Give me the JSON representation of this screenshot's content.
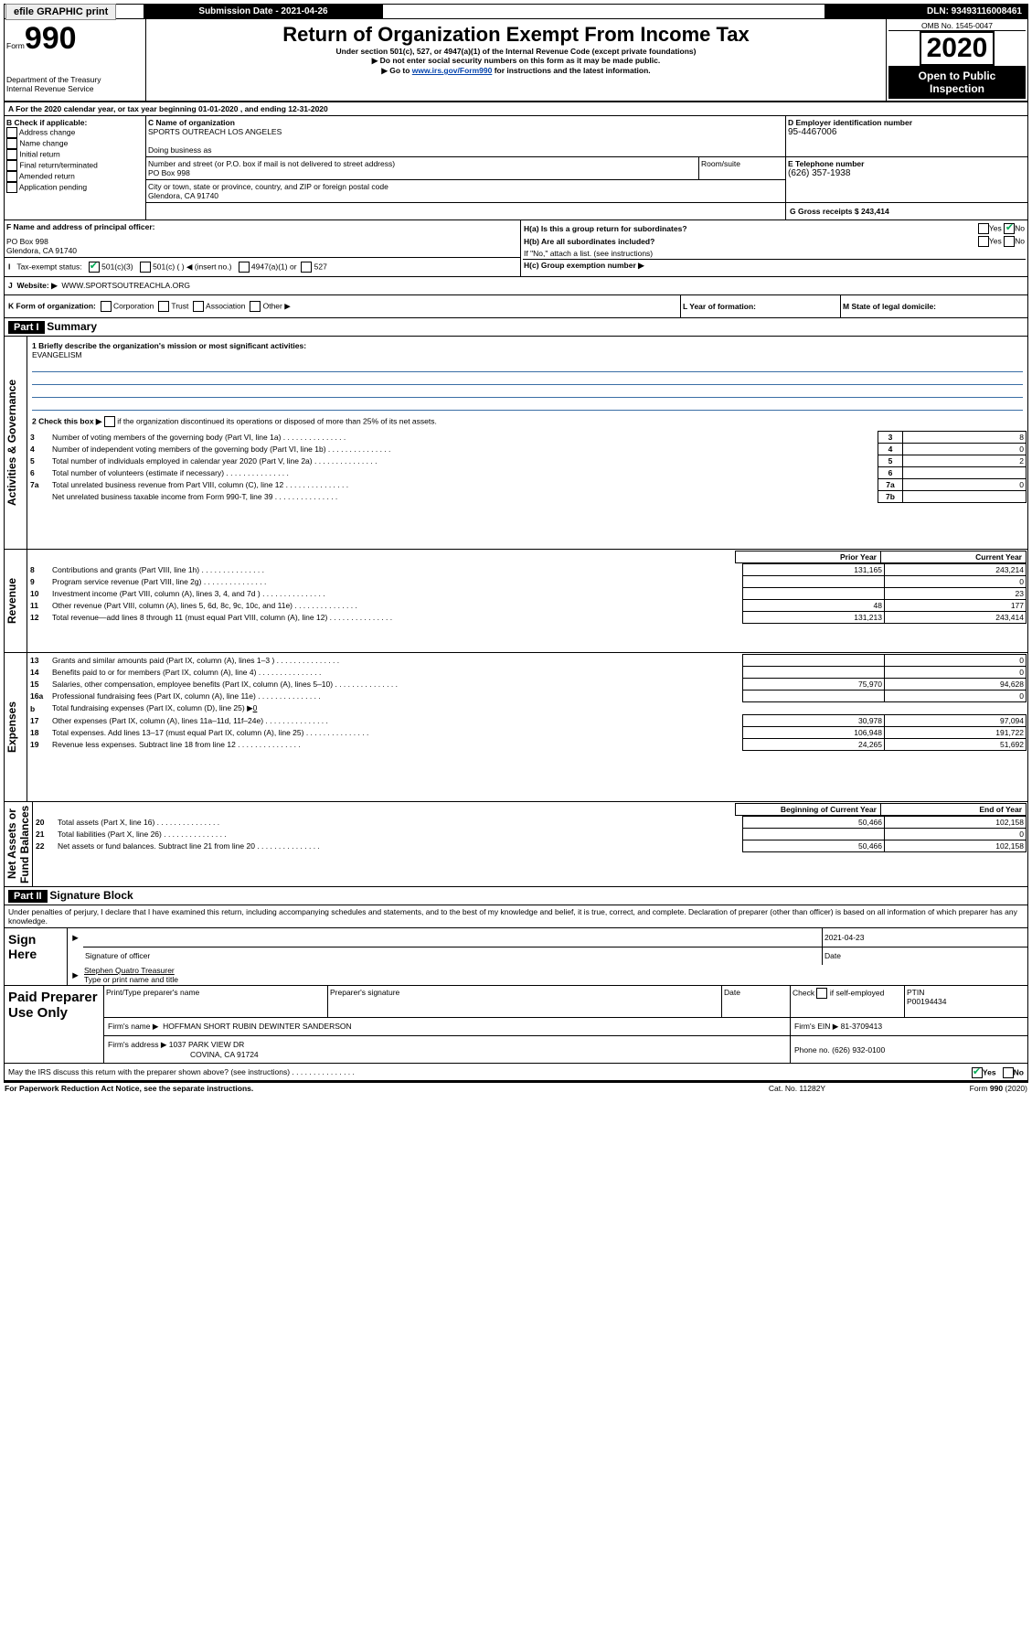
{
  "topbar": {
    "efile": "efile GRAPHIC print",
    "subdate_label": "Submission Date - 2021-04-26",
    "dln_label": "DLN: 93493116008461"
  },
  "header": {
    "form": "Form",
    "num": "990",
    "dept1": "Department of the Treasury",
    "dept2": "Internal Revenue Service",
    "title": "Return of Organization Exempt From Income Tax",
    "sub1": "Under section 501(c), 527, or 4947(a)(1) of the Internal Revenue Code (except private foundations)",
    "sub2": "▶ Do not enter social security numbers on this form as it may be made public.",
    "sub3_prefix": "▶ Go to ",
    "sub3_link": "www.irs.gov/Form990",
    "sub3_suffix": " for instructions and the latest information.",
    "omb": "OMB No. 1545-0047",
    "year": "2020",
    "open": "Open to Public Inspection"
  },
  "A": {
    "text_prefix": "A For the 2020 calendar year, or tax year beginning ",
    "begin": "01-01-2020",
    "mid": " , and ending ",
    "end": "12-31-2020"
  },
  "B": {
    "label": "B Check if applicable:",
    "items": [
      "Address change",
      "Name change",
      "Initial return",
      "Final return/terminated",
      "Amended return",
      "Application pending"
    ]
  },
  "C": {
    "name_label": "C Name of organization",
    "name": "SPORTS OUTREACH LOS ANGELES",
    "dba_label": "Doing business as",
    "addr_label": "Number and street (or P.O. box if mail is not delivered to street address)",
    "room_label": "Room/suite",
    "addr": "PO Box 998",
    "city_label": "City or town, state or province, country, and ZIP or foreign postal code",
    "city": "Glendora, CA  91740"
  },
  "D": {
    "label": "D Employer identification number",
    "val": "95-4467006"
  },
  "E": {
    "label": "E Telephone number",
    "val": "(626) 357-1938"
  },
  "G": {
    "label": "G Gross receipts $ 243,414"
  },
  "F": {
    "label": "F  Name and address of principal officer:",
    "line1": "PO Box 998",
    "line2": "Glendora, CA  91740"
  },
  "H": {
    "a": "H(a)  Is this a group return for subordinates?",
    "b": "H(b)  Are all subordinates included?",
    "b_note": "If \"No,\" attach a list. (see instructions)",
    "c": "H(c)  Group exemption number ▶",
    "yes": "Yes",
    "no": "No"
  },
  "I": {
    "label": "I",
    "text": "Tax-exempt status:",
    "o1": "501(c)(3)",
    "o2": "501(c) (  ) ◀ (insert no.)",
    "o3": "4947(a)(1) or",
    "o4": "527"
  },
  "J": {
    "label": "J",
    "text": "Website: ▶",
    "val": "WWW.SPORTSOUTREACHLA.ORG"
  },
  "K": {
    "label": "K Form of organization:",
    "opts": [
      "Corporation",
      "Trust",
      "Association",
      "Other ▶"
    ],
    "L": "L Year of formation:",
    "M": "M State of legal domicile:"
  },
  "partI": {
    "hdr": "Part I",
    "title": "Summary",
    "q1": "1  Briefly describe the organization's mission or most significant activities:",
    "q1val": "EVANGELISM",
    "q2": "2   Check this box ▶",
    "q2b": " if the organization discontinued its operations or disposed of more than 25% of its net assets.",
    "rows_gov": [
      {
        "n": "3",
        "d": "Number of voting members of the governing body (Part VI, line 1a)",
        "i": "3",
        "v": "8"
      },
      {
        "n": "4",
        "d": "Number of independent voting members of the governing body (Part VI, line 1b)",
        "i": "4",
        "v": "0"
      },
      {
        "n": "5",
        "d": "Total number of individuals employed in calendar year 2020 (Part V, line 2a)",
        "i": "5",
        "v": "2"
      },
      {
        "n": "6",
        "d": "Total number of volunteers (estimate if necessary)",
        "i": "6",
        "v": ""
      },
      {
        "n": "7a",
        "d": "Total unrelated business revenue from Part VIII, column (C), line 12",
        "i": "7a",
        "v": "0"
      },
      {
        "n": "",
        "d": "Net unrelated business taxable income from Form 990-T, line 39",
        "i": "7b",
        "v": ""
      }
    ],
    "col_prior": "Prior Year",
    "col_curr": "Current Year",
    "rev": [
      {
        "n": "8",
        "d": "Contributions and grants (Part VIII, line 1h)",
        "p": "131,165",
        "c": "243,214"
      },
      {
        "n": "9",
        "d": "Program service revenue (Part VIII, line 2g)",
        "p": "",
        "c": "0"
      },
      {
        "n": "10",
        "d": "Investment income (Part VIII, column (A), lines 3, 4, and 7d )",
        "p": "",
        "c": "23"
      },
      {
        "n": "11",
        "d": "Other revenue (Part VIII, column (A), lines 5, 6d, 8c, 9c, 10c, and 11e)",
        "p": "48",
        "c": "177"
      },
      {
        "n": "12",
        "d": "Total revenue—add lines 8 through 11 (must equal Part VIII, column (A), line 12)",
        "p": "131,213",
        "c": "243,414"
      }
    ],
    "exp": [
      {
        "n": "13",
        "d": "Grants and similar amounts paid (Part IX, column (A), lines 1–3 )",
        "p": "",
        "c": "0"
      },
      {
        "n": "14",
        "d": "Benefits paid to or for members (Part IX, column (A), line 4)",
        "p": "",
        "c": "0"
      },
      {
        "n": "15",
        "d": "Salaries, other compensation, employee benefits (Part IX, column (A), lines 5–10)",
        "p": "75,970",
        "c": "94,628"
      },
      {
        "n": "16a",
        "d": "Professional fundraising fees (Part IX, column (A), line 11e)",
        "p": "",
        "c": "0"
      },
      {
        "n": "b",
        "d": "Total fundraising expenses (Part IX, column (D), line 25) ▶",
        "p": null,
        "c": null,
        "inline": "0"
      },
      {
        "n": "17",
        "d": "Other expenses (Part IX, column (A), lines 11a–11d, 11f–24e)",
        "p": "30,978",
        "c": "97,094"
      },
      {
        "n": "18",
        "d": "Total expenses. Add lines 13–17 (must equal Part IX, column (A), line 25)",
        "p": "106,948",
        "c": "191,722"
      },
      {
        "n": "19",
        "d": "Revenue less expenses. Subtract line 18 from line 12",
        "p": "24,265",
        "c": "51,692"
      }
    ],
    "col_begin": "Beginning of Current Year",
    "col_end": "End of Year",
    "net": [
      {
        "n": "20",
        "d": "Total assets (Part X, line 16)",
        "p": "50,466",
        "c": "102,158"
      },
      {
        "n": "21",
        "d": "Total liabilities (Part X, line 26)",
        "p": "",
        "c": "0"
      },
      {
        "n": "22",
        "d": "Net assets or fund balances. Subtract line 21 from line 20",
        "p": "50,466",
        "c": "102,158"
      }
    ],
    "side_gov": "Activities & Governance",
    "side_rev": "Revenue",
    "side_exp": "Expenses",
    "side_net": "Net Assets or Fund Balances"
  },
  "partII": {
    "hdr": "Part II",
    "title": "Signature Block",
    "decl": "Under penalties of perjury, I declare that I have examined this return, including accompanying schedules and statements, and to the best of my knowledge and belief, it is true, correct, and complete. Declaration of preparer (other than officer) is based on all information of which preparer has any knowledge.",
    "sign_here": "Sign Here",
    "sig_officer": "Signature of officer",
    "sig_date": "2021-04-23",
    "date_label": "Date",
    "officer_name": "Stephen Quatro Treasurer",
    "type_name": "Type or print name and title",
    "paid": "Paid Preparer Use Only",
    "prep_name_label": "Print/Type preparer's name",
    "prep_sig_label": "Preparer's signature",
    "check_self": "Check",
    "self_emp": "if self-employed",
    "ptin_label": "PTIN",
    "ptin": "P00194434",
    "firm_name_label": "Firm's name   ▶",
    "firm_name": "HOFFMAN SHORT RUBIN DEWINTER SANDERSON",
    "firm_ein_label": "Firm's EIN ▶",
    "firm_ein": "81-3709413",
    "firm_addr_label": "Firm's address ▶",
    "firm_addr1": "1037 PARK VIEW DR",
    "firm_addr2": "COVINA, CA  91724",
    "phone_label": "Phone no.",
    "phone": "(626) 932-0100",
    "discuss": "May the IRS discuss this return with the preparer shown above? (see instructions)",
    "yes": "Yes",
    "no": "No"
  },
  "footer": {
    "pra": "For Paperwork Reduction Act Notice, see the separate instructions.",
    "cat": "Cat. No. 11282Y",
    "form": "Form 990 (2020)"
  }
}
